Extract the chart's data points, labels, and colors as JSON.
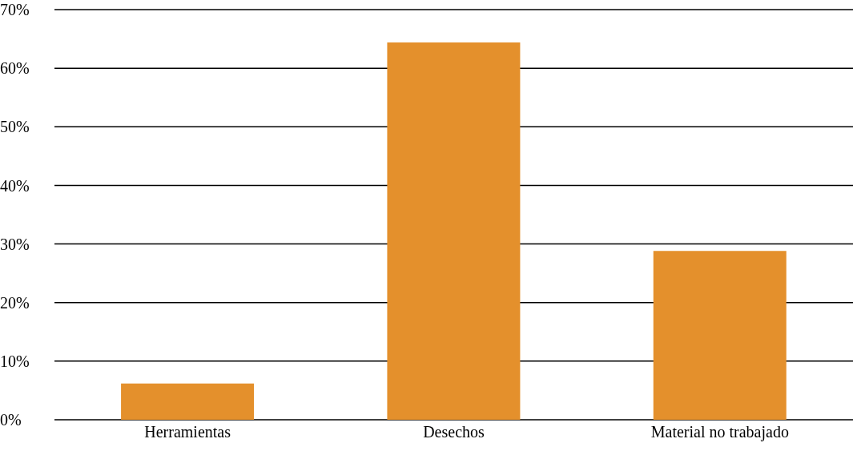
{
  "chart_data": {
    "type": "bar",
    "categories": [
      "Herramientas",
      "Desechos",
      "Material no trabajado"
    ],
    "values": [
      6.2,
      64.4,
      28.8
    ],
    "color": "#e4902c",
    "ylim": [
      0,
      70
    ],
    "yticks": [
      {
        "value": 0,
        "label": "0%"
      },
      {
        "value": 10,
        "label": "10%"
      },
      {
        "value": 20,
        "label": "20%"
      },
      {
        "value": 30,
        "label": "30%"
      },
      {
        "value": 40,
        "label": "40%"
      },
      {
        "value": 50,
        "label": "50%"
      },
      {
        "value": 60,
        "label": "60%"
      },
      {
        "value": 70,
        "label": "70%"
      }
    ],
    "grid": "y"
  }
}
